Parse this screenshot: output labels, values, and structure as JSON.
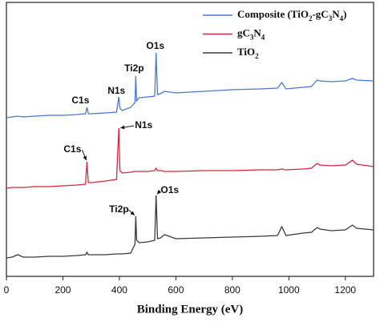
{
  "chart_data": {
    "type": "line",
    "xlabel": "Binding Energy (eV)",
    "xlim": [
      0,
      1300
    ],
    "xticks": [
      0,
      200,
      400,
      600,
      800,
      1000,
      1200
    ],
    "ylim": [
      0,
      342
    ],
    "legend": "upper right",
    "x": [
      0,
      20,
      40,
      60,
      100,
      150,
      200,
      250,
      280,
      285,
      290,
      300,
      350,
      390,
      398,
      402,
      410,
      440,
      455,
      458,
      461,
      470,
      500,
      525,
      530,
      535,
      545,
      560,
      600,
      700,
      800,
      900,
      960,
      975,
      990,
      1050,
      1080,
      1100,
      1110,
      1150,
      1200,
      1225,
      1240,
      1300
    ],
    "series": [
      {
        "name": "Composite (TiO2-gC3N4)",
        "color": "#4a78d0",
        "values": [
          198,
          199,
          200,
          199,
          200,
          201,
          201,
          202,
          203,
          211,
          203,
          203,
          204,
          205,
          224,
          210,
          207,
          211,
          217,
          250,
          219,
          223,
          224,
          225,
          279,
          227,
          228,
          231,
          229,
          231,
          233,
          234,
          235,
          242,
          234,
          236,
          237,
          245,
          244,
          243,
          244,
          247,
          245,
          244
        ]
      },
      {
        "name": "gC3N4",
        "color": "#d9263a",
        "values": [
          110,
          111,
          111,
          111,
          112,
          112,
          113,
          114,
          115,
          143,
          117,
          117,
          119,
          121,
          185,
          132,
          129,
          130,
          131,
          131,
          131,
          131,
          131,
          132,
          135,
          132,
          132,
          131,
          131,
          132,
          132,
          133,
          133,
          134,
          133,
          134,
          135,
          141,
          139,
          138,
          139,
          145,
          140,
          137
        ]
      },
      {
        "name": "TiO2",
        "color": "#3a3a3a",
        "values": [
          23,
          24,
          27,
          24,
          24,
          25,
          25,
          26,
          27,
          30,
          27,
          27,
          27,
          28,
          28,
          28,
          28,
          29,
          40,
          75,
          45,
          42,
          43,
          45,
          101,
          47,
          48,
          52,
          47,
          48,
          49,
          50,
          51,
          62,
          51,
          54,
          55,
          61,
          59,
          57,
          58,
          64,
          60,
          58
        ]
      }
    ],
    "annotations": [
      {
        "text": "C1s",
        "x": 285,
        "y": 211
      },
      {
        "text": "N1s",
        "x": 398,
        "y": 224
      },
      {
        "text": "Ti2p",
        "x": 458,
        "y": 250
      },
      {
        "text": "O1s",
        "x": 530,
        "y": 279
      },
      {
        "text": "C1s",
        "x": 285,
        "y": 143
      },
      {
        "text": "N1s",
        "x": 398,
        "y": 185
      },
      {
        "text": "Ti2p",
        "x": 458,
        "y": 75
      },
      {
        "text": "O1s",
        "x": 530,
        "y": 101
      }
    ]
  }
}
